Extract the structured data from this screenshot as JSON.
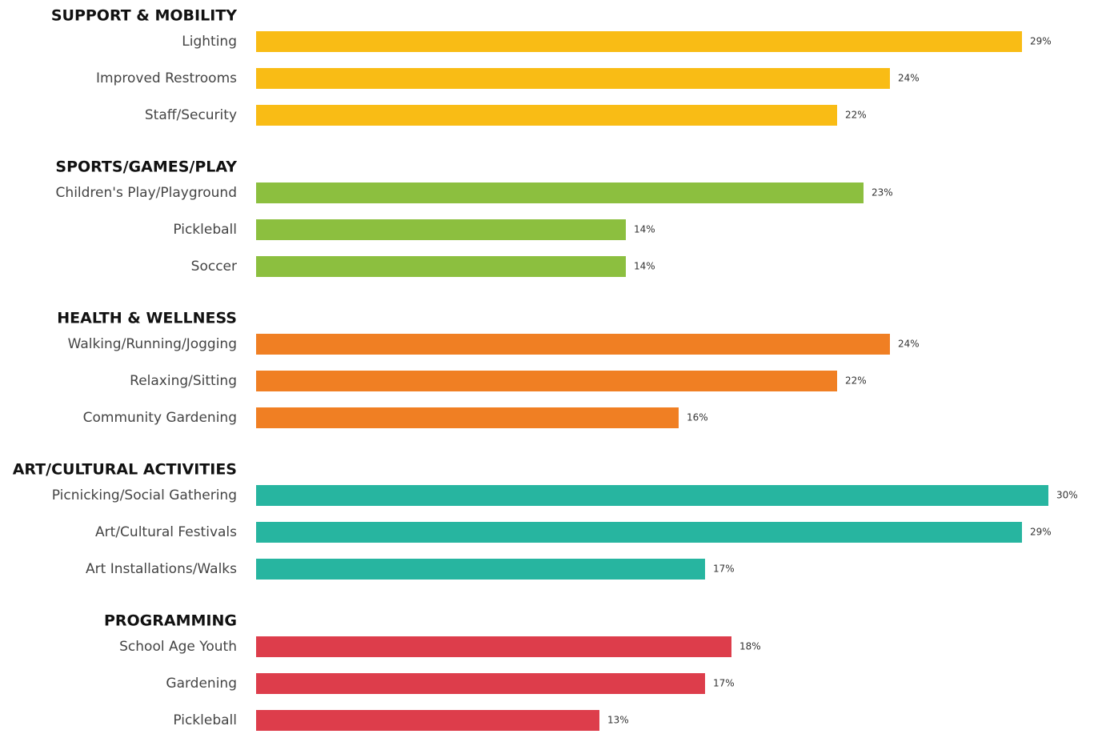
{
  "chart_data": {
    "type": "bar",
    "xlim": [
      0,
      30
    ],
    "groups": [
      {
        "name": "SUPPORT & MOBILITY",
        "color": "#f9bc15",
        "categories": [
          "Lighting",
          "Improved Restrooms",
          "Staff/Security"
        ],
        "values": [
          29,
          24,
          22
        ],
        "value_labels": [
          "29%",
          "24%",
          "22%"
        ]
      },
      {
        "name": "SPORTS/GAMES/PLAY",
        "color": "#8cbf3f",
        "categories": [
          "Children's Play/Playground",
          "Pickleball",
          "Soccer"
        ],
        "values": [
          23,
          14,
          14
        ],
        "value_labels": [
          "23%",
          "14%",
          "14%"
        ]
      },
      {
        "name": "HEALTH & WELLNESS",
        "color": "#f07f23",
        "categories": [
          "Walking/Running/Jogging",
          "Relaxing/Sitting",
          "Community Gardening"
        ],
        "values": [
          24,
          22,
          16
        ],
        "value_labels": [
          "24%",
          "22%",
          "16%"
        ]
      },
      {
        "name": "ART/CULTURAL ACTIVITIES",
        "color": "#27b5a0",
        "categories": [
          "Picnicking/Social Gathering",
          "Art/Cultural Festivals",
          "Art Installations/Walks"
        ],
        "values": [
          30,
          29,
          17
        ],
        "value_labels": [
          "30%",
          "29%",
          "17%"
        ]
      },
      {
        "name": "PROGRAMMING",
        "color": "#dd3d4b",
        "categories": [
          "School Age Youth",
          "Gardening",
          "Pickleball"
        ],
        "values": [
          18,
          17,
          13
        ],
        "value_labels": [
          "18%",
          "17%",
          "13%"
        ]
      }
    ]
  }
}
